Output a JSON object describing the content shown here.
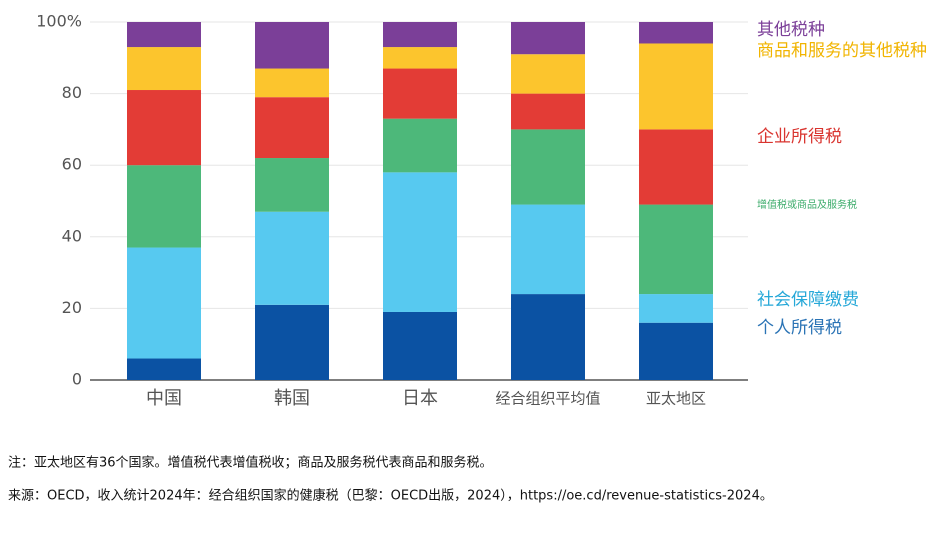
{
  "chart_data": {
    "type": "stacked-bar",
    "categories": [
      "中国",
      "韩国",
      "日本",
      "经合组织平均值",
      "亚太地区"
    ],
    "series": [
      {
        "name": "个人所得税",
        "color": "#0b52a3",
        "values": [
          6,
          21,
          19,
          24,
          16
        ]
      },
      {
        "name": "社会保障缴费",
        "color": "#57c9f0",
        "values": [
          31,
          26,
          39,
          25,
          8
        ]
      },
      {
        "name": "增值税或商品及服务税",
        "color": "#4db87a",
        "values": [
          23,
          15,
          15,
          21,
          25
        ]
      },
      {
        "name": "企业所得税",
        "color": "#e33c36",
        "values": [
          21,
          17,
          14,
          10,
          21
        ]
      },
      {
        "name": "商品和服务的其他税种",
        "color": "#fcc52d",
        "values": [
          12,
          8,
          6,
          11,
          24
        ]
      },
      {
        "name": "其他税种",
        "color": "#7b3f98",
        "values": [
          7,
          13,
          7,
          9,
          6
        ]
      }
    ],
    "legend_colors": [
      "#2a73b5",
      "#26a8d8",
      "#3bab6a",
      "#d9342f",
      "#f1b400",
      "#7b3f98"
    ],
    "ylim": [
      0,
      100
    ],
    "yticks": [
      0,
      20,
      40,
      60,
      80,
      {
        "value": 100,
        "label": "100%"
      }
    ],
    "grid": true,
    "note": "注：亚太地区有36个国家。增值税代表增值税收；商品及服务税代表商品和服务税。",
    "source": "来源：OECD，收入统计2024年：经合组织国家的健康税（巴黎：OECD出版，2024），https://oe.cd/revenue-statistics-2024。"
  }
}
